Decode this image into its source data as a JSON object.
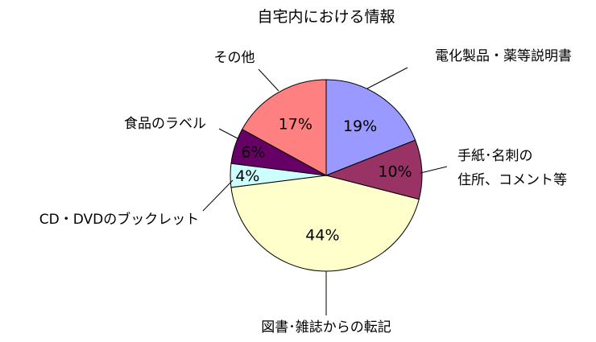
{
  "chart_data": {
    "type": "pie",
    "title": "自宅内における情報",
    "start_angle_deg": 0,
    "direction": "clockwise",
    "slices": [
      {
        "label": "電化製品・薬等説明書",
        "value": 19,
        "value_label": "19%",
        "color": "#9999ff"
      },
      {
        "label": "手紙･名刺の\n住所、コメント等",
        "value": 10,
        "value_label": "10%",
        "color": "#993366"
      },
      {
        "label": "図書･雑誌からの転記",
        "value": 44,
        "value_label": "44%",
        "color": "#ffffcc"
      },
      {
        "label": "CD・DVDのブックレット",
        "value": 4,
        "value_label": "4%",
        "color": "#ccffff"
      },
      {
        "label": "食品のラベル",
        "value": 6,
        "value_label": "6%",
        "color": "#660066"
      },
      {
        "label": "その他",
        "value": 17,
        "value_label": "17%",
        "color": "#ff8080"
      }
    ]
  }
}
